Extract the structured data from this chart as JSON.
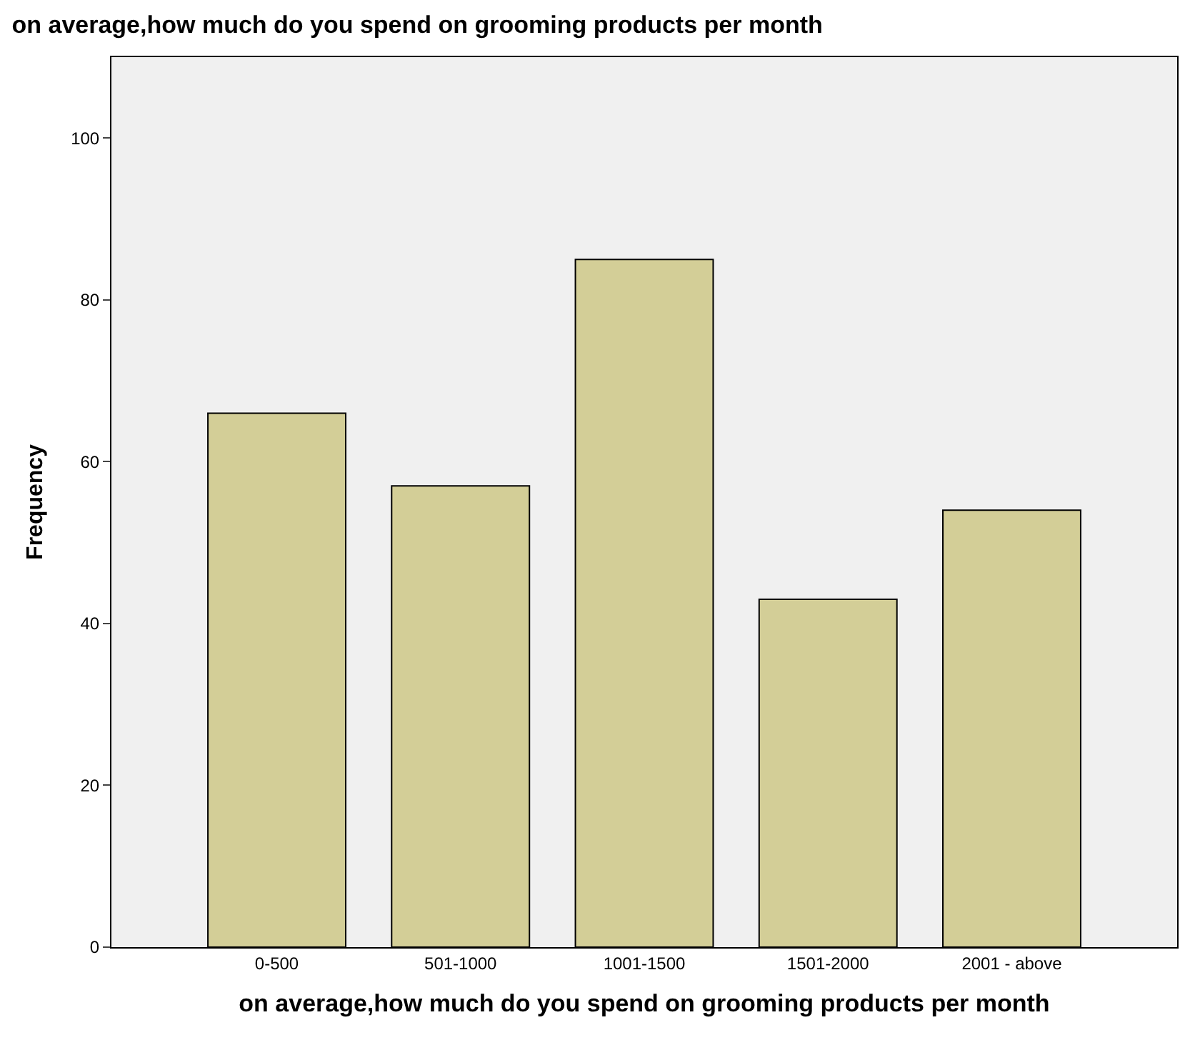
{
  "chart_data": {
    "type": "bar",
    "title": "on average,how much do you spend on grooming products per month",
    "xlabel": "on average,how much do you spend on grooming products per month",
    "ylabel": "Frequency",
    "categories": [
      "0-500",
      "501-1000",
      "1001-1500",
      "1501-2000",
      "2001 - above"
    ],
    "values": [
      66,
      57,
      85,
      43,
      54
    ],
    "color": "#d3ce97",
    "ylim": [
      0,
      110
    ],
    "yticks": [
      0,
      20,
      40,
      60,
      80,
      100
    ],
    "grid": false
  }
}
